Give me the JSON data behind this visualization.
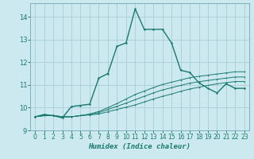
{
  "title": "",
  "xlabel": "Humidex (Indice chaleur)",
  "bg_color": "#cce9f0",
  "grid_color": "#aacdd8",
  "line_color": "#1a7a6e",
  "xlim": [
    -0.5,
    23.5
  ],
  "ylim": [
    9.0,
    14.6
  ],
  "xticks": [
    0,
    1,
    2,
    3,
    4,
    5,
    6,
    7,
    8,
    9,
    10,
    11,
    12,
    13,
    14,
    15,
    16,
    17,
    18,
    19,
    20,
    21,
    22,
    23
  ],
  "yticks": [
    9,
    10,
    11,
    12,
    13,
    14
  ],
  "main_line_x": [
    0,
    1,
    2,
    3,
    4,
    5,
    6,
    7,
    8,
    9,
    10,
    11,
    12,
    13,
    14,
    15,
    16,
    17,
    18,
    19,
    20,
    21,
    22,
    23
  ],
  "main_line_y": [
    9.6,
    9.7,
    9.65,
    9.55,
    10.05,
    10.1,
    10.15,
    11.3,
    11.5,
    12.7,
    12.85,
    14.35,
    13.45,
    13.45,
    13.45,
    12.85,
    11.65,
    11.55,
    11.1,
    10.85,
    10.65,
    11.05,
    10.85,
    10.85
  ],
  "ref_lines": [
    [
      9.6,
      9.65,
      9.65,
      9.6,
      9.6,
      9.65,
      9.68,
      9.72,
      9.82,
      9.92,
      10.02,
      10.12,
      10.25,
      10.38,
      10.5,
      10.6,
      10.72,
      10.82,
      10.9,
      10.98,
      11.05,
      11.1,
      11.15,
      11.15
    ],
    [
      9.6,
      9.65,
      9.65,
      9.6,
      9.6,
      9.65,
      9.7,
      9.78,
      9.92,
      10.06,
      10.2,
      10.35,
      10.5,
      10.65,
      10.78,
      10.88,
      10.98,
      11.08,
      11.14,
      11.2,
      11.25,
      11.3,
      11.35,
      11.35
    ],
    [
      9.6,
      9.65,
      9.65,
      9.6,
      9.6,
      9.65,
      9.72,
      9.83,
      10.0,
      10.18,
      10.38,
      10.58,
      10.73,
      10.88,
      11.02,
      11.12,
      11.22,
      11.32,
      11.38,
      11.43,
      11.48,
      11.53,
      11.58,
      11.58
    ]
  ]
}
